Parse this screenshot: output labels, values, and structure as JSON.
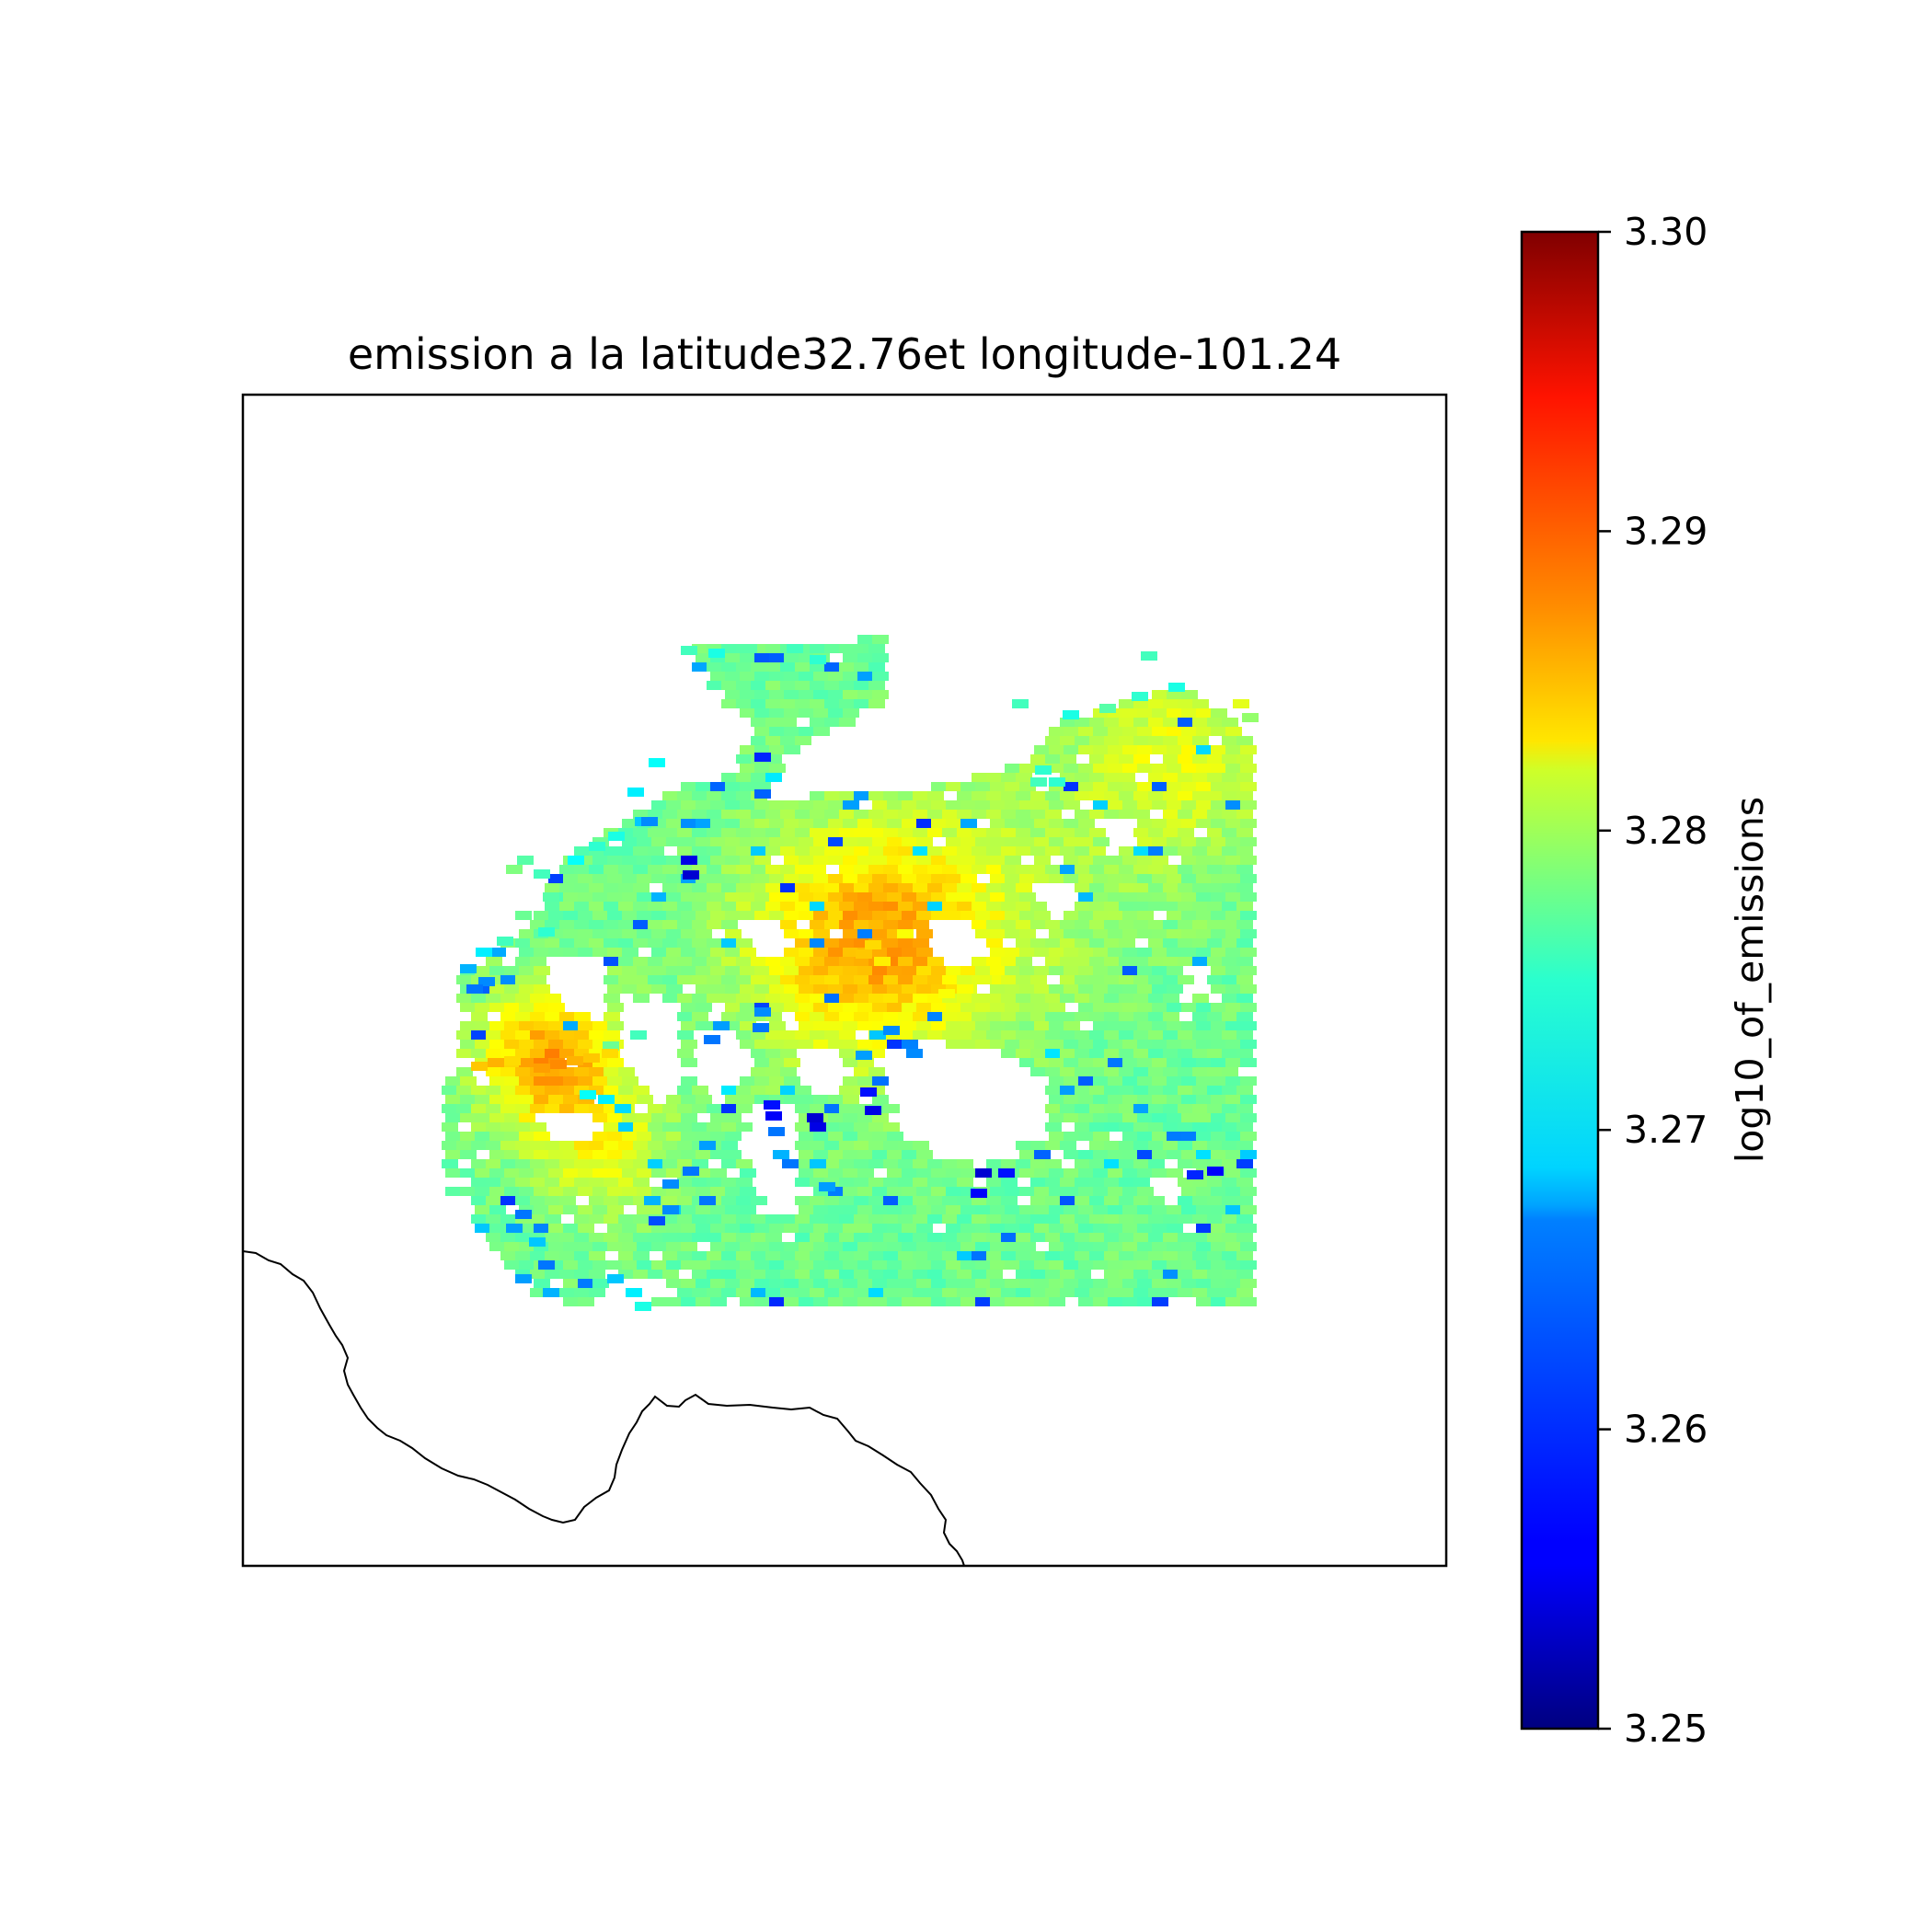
{
  "chart_data": {
    "type": "heatmap",
    "title": "emission a la latitude32.76et longitude-101.24",
    "colorbar": {
      "label": "log10_of_emissions",
      "colormap": "jet",
      "range": [
        3.25,
        3.3
      ],
      "ticks": [
        3.25,
        3.26,
        3.27,
        3.28,
        3.29,
        3.3
      ],
      "tick_labels": [
        "3.25",
        "3.26",
        "3.27",
        "3.28",
        "3.29",
        "3.30"
      ]
    },
    "field": {
      "background_value": 3.274,
      "hotspot_value": 3.286,
      "min_value": 3.252
    },
    "coastline": true,
    "axes_visible": false
  }
}
